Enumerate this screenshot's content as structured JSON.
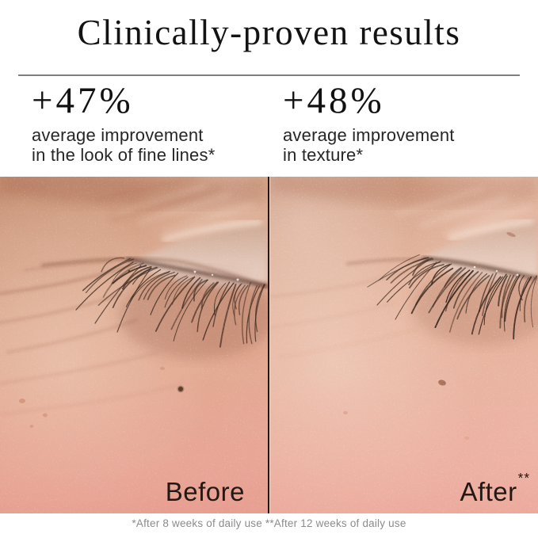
{
  "header": {
    "title": "Clinically-proven results"
  },
  "stats": [
    {
      "value": "+47%",
      "line1": "average improvement",
      "line2": "in the look of fine lines*"
    },
    {
      "value": "+48%",
      "line1": "average improvement",
      "line2": "in texture*"
    }
  ],
  "comparison": {
    "photos": [
      {
        "label": "Before",
        "label_sup": ""
      },
      {
        "label": "After",
        "label_sup": "**"
      }
    ]
  },
  "footnote": "*After 8 weeks of daily use **After 12 weeks of daily use",
  "colors": {
    "background": "#ffffff",
    "title_text": "#131313",
    "body_text": "#262626",
    "footnote_text": "#8b8b8b",
    "header_rule": "#7f7f7f",
    "photo_divider": "#2a150e",
    "photo_label": "#221914",
    "skin_tan": "#d4a189",
    "skin_pink": "#e9ad9d",
    "eyelid_light": "#e4cabd",
    "lash_brown": "#33211b"
  }
}
